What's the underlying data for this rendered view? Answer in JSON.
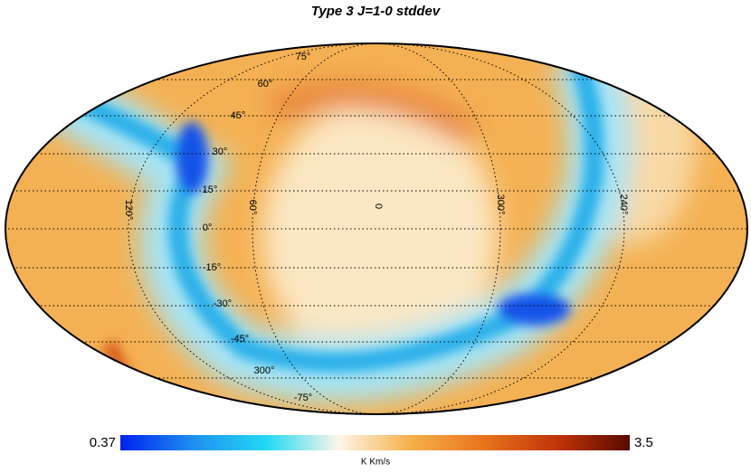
{
  "title": "Type 3 J=1-0 stddev",
  "latitude_labels": [
    "75°",
    "60°",
    "45°",
    "30°",
    "15°",
    "0°",
    "-15°",
    "-30°",
    "-45°",
    "300°",
    "-75°"
  ],
  "longitude_labels": [
    "120°",
    "60°",
    "0",
    "300°",
    "240°"
  ],
  "colorbar": {
    "min": 0.37,
    "max": 3.5,
    "unit": "K Km/s",
    "colors": [
      "#0022ee",
      "#1f8ff0",
      "#22d8f5",
      "#fdf6e8",
      "#f6b04a",
      "#e8741c",
      "#c23408",
      "#5a0a00"
    ]
  }
}
